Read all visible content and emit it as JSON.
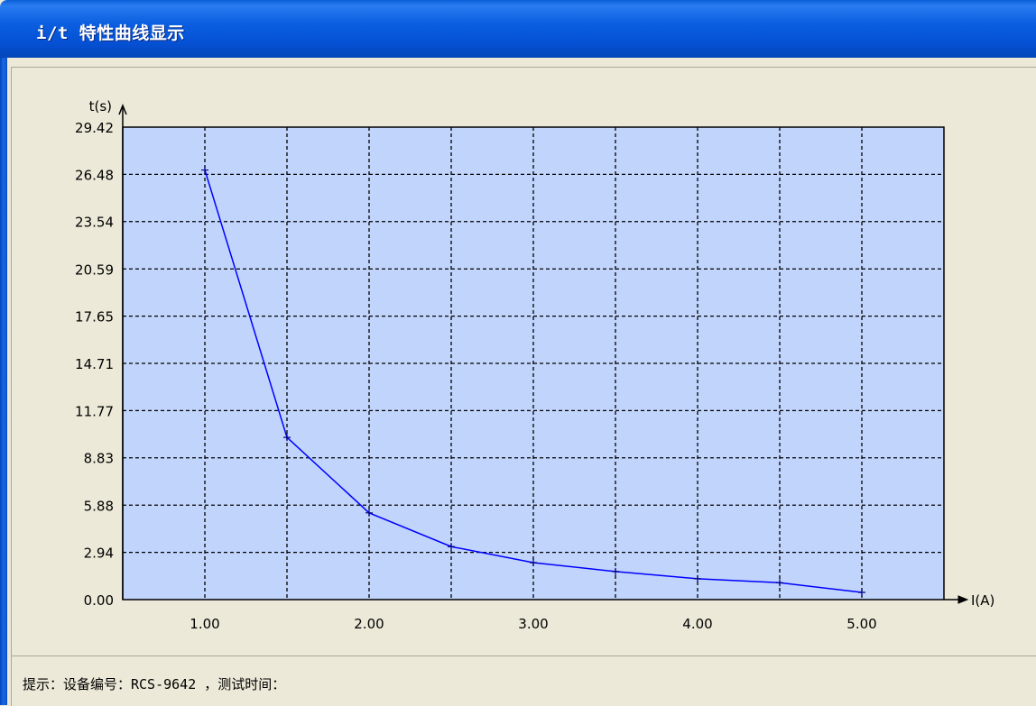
{
  "window": {
    "title": "i/t 特性曲线显示"
  },
  "chart_data": {
    "type": "line",
    "title": "",
    "xlabel": "I(A)",
    "ylabel": "t(s)",
    "x_ticks": [
      "1.00",
      "2.00",
      "3.00",
      "4.00",
      "5.00"
    ],
    "y_ticks": [
      "0.00",
      "2.94",
      "5.88",
      "8.83",
      "11.77",
      "14.71",
      "17.65",
      "20.59",
      "23.54",
      "26.48",
      "29.42"
    ],
    "xlim": [
      0.5,
      5.5
    ],
    "ylim": [
      0,
      29.42
    ],
    "grid": true,
    "plot_background": "#c0d4fc",
    "series": [
      {
        "color": "#0000ff",
        "x": [
          1.0,
          1.5,
          2.0,
          2.5,
          3.0,
          3.5,
          4.0,
          4.5,
          5.0
        ],
        "y": [
          26.75,
          10.1,
          5.4,
          3.3,
          2.3,
          1.75,
          1.3,
          1.05,
          0.45
        ]
      }
    ]
  },
  "status": {
    "text": "提示：设备编号：RCS-9642 ，测试时间："
  }
}
